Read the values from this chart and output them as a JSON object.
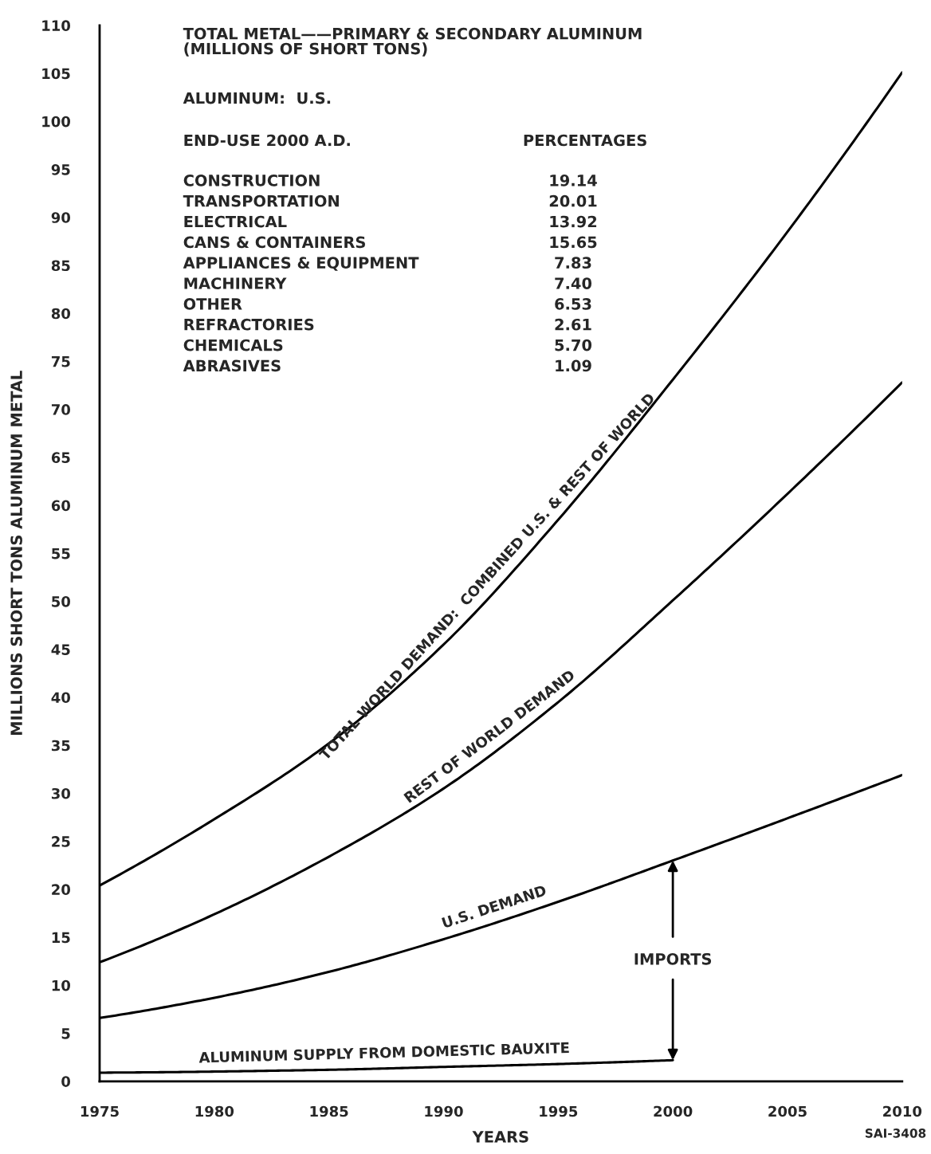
{
  "chart_data": {
    "type": "line",
    "title": "TOTAL METAL——PRIMARY & SECONDARY ALUMINUM\n(MILLIONS OF SHORT TONS)",
    "subtitle": "ALUMINUM:  U.S.",
    "xlabel": "YEARS",
    "ylabel": "MILLIONS SHORT TONS ALUMINUM METAL",
    "xlim": [
      1975,
      2010
    ],
    "xticks": [
      1975,
      1980,
      1985,
      1990,
      1995,
      2000,
      2005,
      2010
    ],
    "ylim": [
      0,
      110
    ],
    "yticks": [
      0,
      5,
      10,
      15,
      20,
      25,
      30,
      35,
      40,
      45,
      50,
      55,
      60,
      65,
      70,
      75,
      80,
      85,
      90,
      95,
      100,
      105,
      110
    ],
    "grid": false,
    "line_style": "solid",
    "series": [
      {
        "name": "TOTAL WORLD DEMAND:  COMBINED U.S. & REST OF WORLD",
        "color": "#000000",
        "x": [
          1975,
          1980,
          1985,
          1990,
          1995,
          2000,
          2005,
          2010
        ],
        "values": [
          20.4,
          27.3,
          35.2,
          45.5,
          58.5,
          73.1,
          88.5,
          105.1
        ]
      },
      {
        "name": "REST OF WORLD DEMAND",
        "color": "#000000",
        "x": [
          1975,
          1980,
          1985,
          1990,
          1995,
          2000,
          2005,
          2010
        ],
        "values": [
          12.4,
          17.4,
          23.4,
          30.5,
          39.5,
          50.1,
          61.2,
          72.8
        ]
      },
      {
        "name": "U.S. DEMAND",
        "color": "#000000",
        "x": [
          1975,
          1980,
          1985,
          1990,
          1995,
          2000,
          2005,
          2010
        ],
        "values": [
          6.6,
          8.7,
          11.4,
          14.8,
          18.7,
          23.0,
          27.4,
          31.9
        ]
      },
      {
        "name": "ALUMINUM SUPPLY FROM DOMESTIC BAUXITE",
        "color": "#000000",
        "x": [
          1975,
          1985,
          1990,
          1995,
          2000
        ],
        "values": [
          0.9,
          1.2,
          1.5,
          1.8,
          2.2
        ]
      }
    ],
    "annotations": [
      "END-USE 2000 A.D.",
      "PERCENTAGES",
      "CONSTRUCTION",
      "19.14",
      "TRANSPORTATION",
      "20.01",
      "ELECTRICAL",
      "13.92",
      "CANS & CONTAINERS",
      "15.65",
      "APPLIANCES & EQUIPMENT",
      "7.83",
      "MACHINERY",
      "7.40",
      "OTHER",
      "6.53",
      "REFRACTORIES",
      "2.61",
      "CHEMICALS",
      "5.70",
      "ABRASIVES",
      "1.09",
      {
        "text": "IMPORTS",
        "x": 2000,
        "y": 23.0
      },
      "SAI-3408"
    ]
  }
}
